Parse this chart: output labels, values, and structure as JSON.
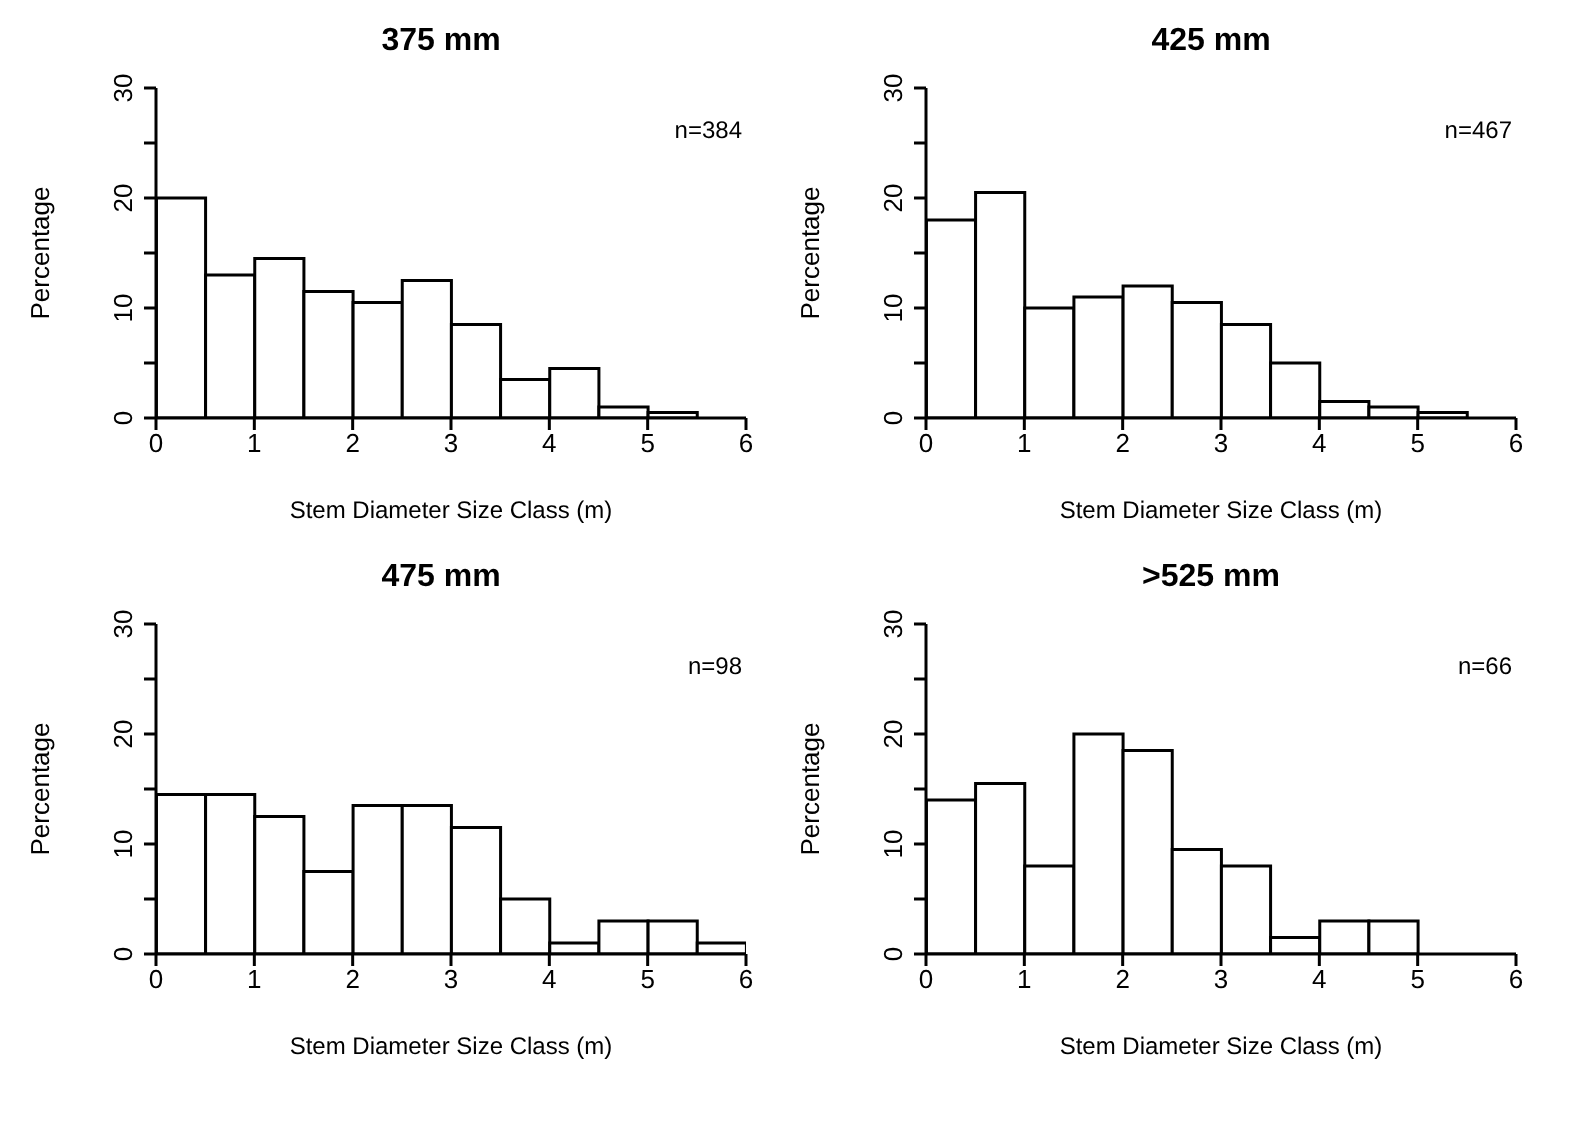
{
  "chart_data": [
    {
      "type": "histogram",
      "title": "375 mm",
      "xlabel": "Stem Diameter Size Class (m)",
      "ylabel": "Percentage",
      "annotations": [
        "n=384"
      ],
      "color": "#ffffff",
      "bins": [
        0,
        0.5,
        1,
        1.5,
        2,
        2.5,
        3,
        3.5,
        4,
        4.5,
        5,
        5.5
      ],
      "values": [
        20,
        13,
        14.5,
        11.5,
        10.5,
        12.5,
        8.5,
        3.5,
        4.5,
        1,
        0.5
      ],
      "xlim": [
        0,
        6
      ],
      "xticks": [
        0,
        1,
        2,
        3,
        4,
        5,
        6
      ],
      "ylim": [
        0,
        30
      ],
      "yticks": [
        0,
        {
          "value": 5,
          "label": null
        },
        10,
        {
          "value": 15,
          "label": null
        },
        20,
        {
          "value": 25,
          "label": null
        },
        30
      ]
    },
    {
      "type": "histogram",
      "title": "425 mm",
      "xlabel": "Stem Diameter Size Class (m)",
      "ylabel": "Percentage",
      "annotations": [
        "n=467"
      ],
      "color": "#ffffff",
      "bins": [
        0,
        0.5,
        1,
        1.5,
        2,
        2.5,
        3,
        3.5,
        4,
        4.5,
        5,
        5.5
      ],
      "values": [
        18,
        20.5,
        10,
        11,
        12,
        10.5,
        8.5,
        5,
        1.5,
        1,
        0.5
      ],
      "xlim": [
        0,
        6
      ],
      "xticks": [
        0,
        1,
        2,
        3,
        4,
        5,
        6
      ],
      "ylim": [
        0,
        30
      ],
      "yticks": [
        0,
        {
          "value": 5,
          "label": null
        },
        10,
        {
          "value": 15,
          "label": null
        },
        20,
        {
          "value": 25,
          "label": null
        },
        30
      ]
    },
    {
      "type": "histogram",
      "title": "475 mm",
      "xlabel": "Stem Diameter Size Class (m)",
      "ylabel": "Percentage",
      "annotations": [
        "n=98"
      ],
      "color": "#ffffff",
      "bins": [
        0,
        0.5,
        1,
        1.5,
        2,
        2.5,
        3,
        3.5,
        4,
        4.5,
        5,
        5.5,
        6
      ],
      "values": [
        14.5,
        14.5,
        12.5,
        7.5,
        13.5,
        13.5,
        11.5,
        5,
        1,
        3,
        3,
        1
      ],
      "xlim": [
        0,
        6
      ],
      "xticks": [
        0,
        1,
        2,
        3,
        4,
        5,
        6
      ],
      "ylim": [
        0,
        30
      ],
      "yticks": [
        0,
        {
          "value": 5,
          "label": null
        },
        10,
        {
          "value": 15,
          "label": null
        },
        20,
        {
          "value": 25,
          "label": null
        },
        30
      ]
    },
    {
      "type": "histogram",
      "title": ">525 mm",
      "xlabel": "Stem Diameter Size Class (m)",
      "ylabel": "Percentage",
      "annotations": [
        "n=66"
      ],
      "color": "#ffffff",
      "bins": [
        0,
        0.5,
        1,
        1.5,
        2,
        2.5,
        3,
        3.5,
        4,
        4.5,
        5
      ],
      "values": [
        14,
        15.5,
        8,
        20,
        18.5,
        9.5,
        8,
        1.5,
        3,
        3
      ],
      "xlim": [
        0,
        6
      ],
      "xticks": [
        0,
        1,
        2,
        3,
        4,
        5,
        6
      ],
      "ylim": [
        0,
        30
      ],
      "yticks": [
        0,
        {
          "value": 5,
          "label": null
        },
        10,
        {
          "value": 15,
          "label": null
        },
        20,
        {
          "value": 25,
          "label": null
        },
        30
      ]
    }
  ]
}
